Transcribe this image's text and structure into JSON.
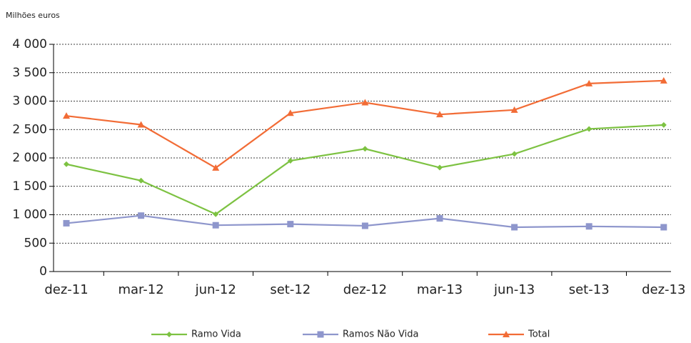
{
  "chart_data": {
    "type": "line",
    "y_label": "Milhões euros",
    "categories": [
      "dez-11",
      "mar-12",
      "jun-12",
      "set-12",
      "dez-12",
      "mar-13",
      "jun-13",
      "set-13",
      "dez-13"
    ],
    "series": [
      {
        "name": "Ramo Vida",
        "color": "#7dc242",
        "marker": "diamond",
        "values": [
          1890,
          1600,
          1010,
          1950,
          2160,
          1830,
          2070,
          2510,
          2580
        ]
      },
      {
        "name": "Ramos Não Vida",
        "color": "#8e96cc",
        "marker": "square",
        "values": [
          850,
          985,
          815,
          835,
          805,
          935,
          780,
          795,
          780
        ]
      },
      {
        "name": "Total",
        "color": "#f26c36",
        "marker": "triangle",
        "values": [
          2740,
          2585,
          1825,
          2790,
          2975,
          2765,
          2845,
          3310,
          3360
        ]
      }
    ],
    "ylim": [
      0,
      4000
    ],
    "yticks": [
      0,
      500,
      {
        "value": 1000,
        "label": "1 000"
      },
      {
        "value": 1500,
        "label": "1 500"
      },
      {
        "value": 2000,
        "label": "2 000"
      },
      {
        "value": 2500,
        "label": "2 500"
      },
      {
        "value": 3000,
        "label": "3 000"
      },
      {
        "value": 3500,
        "label": "3 500"
      },
      {
        "value": 4000,
        "label": "4 000"
      }
    ],
    "grid": true,
    "legend": "bottom"
  }
}
